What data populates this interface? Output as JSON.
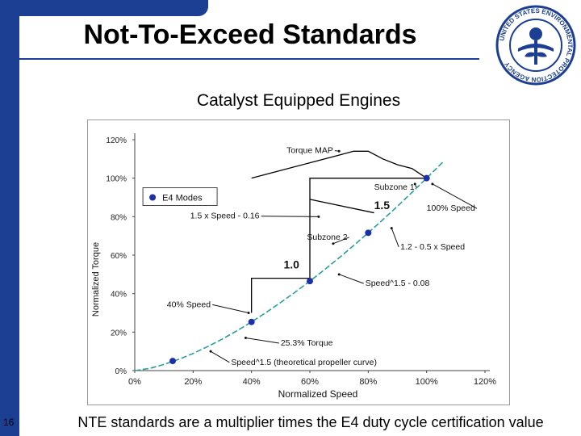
{
  "slide": {
    "title": "Not-To-Exceed Standards",
    "subtitle": "Catalyst Equipped Engines",
    "footer": "NTE standards are a multiplier times the E4 duty cycle certification value",
    "slide_number": "16",
    "logo_text": "UNITED STATES ENVIRONMENTAL PROTECTION AGENCY",
    "accent_color": "#1c3f94"
  },
  "chart_data": {
    "type": "line",
    "xlabel": "Normalized Speed",
    "ylabel": "Normalized Torque",
    "xlim": [
      0,
      120
    ],
    "ylim": [
      0,
      120
    ],
    "x_ticks": [
      "0%",
      "20%",
      "40%",
      "60%",
      "80%",
      "100%",
      "120%"
    ],
    "y_ticks": [
      "0%",
      "20%",
      "40%",
      "60%",
      "80%",
      "100%",
      "120%"
    ],
    "grid": false,
    "legend": [
      {
        "label": "E4 Modes",
        "color": "#1f2fa8"
      }
    ],
    "series": [
      {
        "name": "Speed^1.5 (theoretical propeller curve)",
        "color": "#2a9d9a",
        "x": [
          0,
          5,
          10,
          15,
          20,
          25,
          30,
          35,
          40,
          45,
          50,
          55,
          60,
          65,
          70,
          75,
          80,
          85,
          90,
          95,
          100,
          103,
          106
        ],
        "y": [
          0,
          1.1,
          3.2,
          5.8,
          8.9,
          12.5,
          16.4,
          20.7,
          25.3,
          30.2,
          35.4,
          40.8,
          46.5,
          52.4,
          58.6,
          65,
          71.6,
          78.4,
          85.4,
          92.6,
          100,
          104.5,
          109
        ]
      },
      {
        "name": "Torque MAP",
        "color": "#000000",
        "x": [
          40,
          50,
          60,
          70,
          75,
          80,
          85,
          90,
          95,
          100
        ],
        "y": [
          100,
          104,
          108,
          112,
          114,
          114,
          110,
          107,
          105,
          100
        ]
      }
    ],
    "e4_modes": [
      {
        "x": 13,
        "y": 5
      },
      {
        "x": 40,
        "y": 25.3
      },
      {
        "x": 60,
        "y": 46.5
      },
      {
        "x": 80,
        "y": 71.6
      },
      {
        "x": 100,
        "y": 100
      }
    ],
    "nte_boundary": [
      {
        "x": 40,
        "y": 30
      },
      {
        "x": 40,
        "y": 48
      },
      {
        "x": 60,
        "y": 48
      },
      {
        "x": 60,
        "y": 100
      },
      {
        "x": 100,
        "y": 100
      }
    ],
    "subzone_divider": [
      {
        "x": 60,
        "y": 89
      },
      {
        "x": 82,
        "y": 82
      }
    ],
    "annotations": [
      {
        "text": "Torque MAP",
        "x": 52,
        "y": 113,
        "tx": 70,
        "ty": 114
      },
      {
        "text": "Subzone 1",
        "x": 82,
        "y": 94,
        "tx": 96,
        "ty": 97
      },
      {
        "text": "1.5",
        "x": 82,
        "y": 84,
        "bold": true
      },
      {
        "text": "100% Speed",
        "x": 100,
        "y": 83,
        "tx": 102,
        "ty": 97
      },
      {
        "text": "1.5 x Speed - 0.16",
        "x": 19,
        "y": 79,
        "tx": 63,
        "ty": 80
      },
      {
        "text": "Subzone 2",
        "x": 59,
        "y": 68,
        "tx": 68,
        "ty": 66
      },
      {
        "text": "1.2 - 0.5 x Speed",
        "x": 91,
        "y": 63,
        "tx": 88,
        "ty": 74
      },
      {
        "text": "1.0",
        "x": 51,
        "y": 53,
        "bold": true
      },
      {
        "text": "Speed^1.5 - 0.08",
        "x": 79,
        "y": 44,
        "tx": 70,
        "ty": 50
      },
      {
        "text": "40% Speed",
        "x": 11,
        "y": 33,
        "tx": 39,
        "ty": 30
      },
      {
        "text": "25.3% Torque",
        "x": 50,
        "y": 13,
        "tx": 38,
        "ty": 17
      },
      {
        "text": "Speed^1.5 (theoretical propeller curve)",
        "x": 33,
        "y": 3,
        "tx": 26,
        "ty": 10
      }
    ]
  }
}
